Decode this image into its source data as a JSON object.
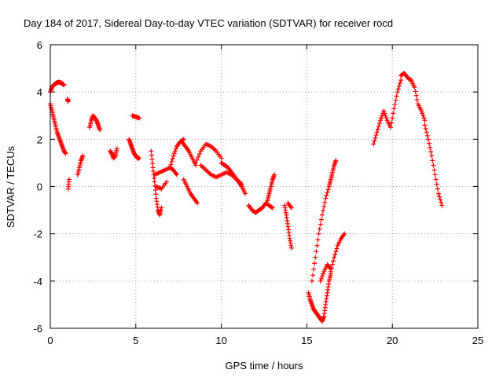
{
  "chart_data": {
    "type": "scatter",
    "title": "Day 184 of 2017, Sidereal Day-to-day VTEC variation (SDTVAR) for receiver rocd",
    "xlabel": "GPS time / hours",
    "ylabel": "SDTVAR / TECUs",
    "xlim": [
      0,
      25
    ],
    "ylim": [
      -6,
      6
    ],
    "xticks": [
      0,
      5,
      10,
      15,
      20,
      25
    ],
    "yticks": [
      -6,
      -4,
      -2,
      0,
      2,
      4,
      6
    ],
    "grid": true,
    "marker": "+",
    "color": "#ff0000",
    "segments": [
      {
        "x": [
          0.0,
          0.1,
          0.2,
          0.3,
          0.4,
          0.5,
          0.6,
          0.7,
          0.8
        ],
        "y": [
          4.0,
          4.2,
          4.3,
          4.35,
          4.4,
          4.42,
          4.4,
          4.35,
          4.3
        ]
      },
      {
        "x": [
          0.0,
          0.1,
          0.2,
          0.3,
          0.4,
          0.5,
          0.6,
          0.7,
          0.8,
          0.9
        ],
        "y": [
          3.5,
          3.2,
          2.9,
          2.6,
          2.3,
          2.1,
          1.9,
          1.7,
          1.5,
          1.4
        ]
      },
      {
        "x": [
          1.0,
          1.05
        ],
        "y": [
          3.7,
          3.6
        ]
      },
      {
        "x": [
          1.05,
          1.1
        ],
        "y": [
          -0.1,
          0.3
        ]
      },
      {
        "x": [
          1.6,
          1.7,
          1.8,
          1.9
        ],
        "y": [
          0.5,
          0.8,
          1.1,
          1.3
        ]
      },
      {
        "x": [
          2.3,
          2.4,
          2.5,
          2.6,
          2.7,
          2.8,
          2.9
        ],
        "y": [
          2.5,
          2.8,
          3.0,
          2.9,
          2.8,
          2.6,
          2.4
        ]
      },
      {
        "x": [
          3.5,
          3.6,
          3.7,
          3.8,
          3.9
        ],
        "y": [
          1.5,
          1.4,
          1.2,
          1.3,
          1.6
        ]
      },
      {
        "x": [
          4.6,
          4.7,
          4.8,
          4.9,
          5.0,
          5.1,
          5.2
        ],
        "y": [
          2.0,
          1.8,
          1.6,
          1.4,
          1.3,
          1.2,
          1.2
        ]
      },
      {
        "x": [
          4.8,
          5.0,
          5.2
        ],
        "y": [
          3.0,
          2.95,
          2.9
        ]
      },
      {
        "x": [
          5.9,
          6.0,
          6.1,
          6.2,
          6.3,
          6.4,
          6.5
        ],
        "y": [
          1.5,
          0.8,
          0.2,
          -0.5,
          -1.0,
          -1.2,
          -0.9
        ]
      },
      {
        "x": [
          6.1,
          6.4,
          6.7,
          7.0,
          7.2,
          7.4
        ],
        "y": [
          0.5,
          0.6,
          0.7,
          0.8,
          0.7,
          0.5
        ]
      },
      {
        "x": [
          6.2,
          6.5,
          6.8
        ],
        "y": [
          0.0,
          -0.1,
          0.2
        ]
      },
      {
        "x": [
          7.0,
          7.2,
          7.4,
          7.6,
          7.8
        ],
        "y": [
          0.8,
          1.3,
          1.7,
          1.9,
          2.0
        ]
      },
      {
        "x": [
          7.7,
          7.9,
          8.1,
          8.3,
          8.5
        ],
        "y": [
          1.9,
          1.7,
          1.5,
          1.2,
          0.9
        ]
      },
      {
        "x": [
          7.8,
          8.0,
          8.2,
          8.4,
          8.6
        ],
        "y": [
          0.3,
          0.0,
          -0.3,
          -0.5,
          -0.7
        ]
      },
      {
        "x": [
          8.5,
          8.8,
          9.1,
          9.4,
          9.7,
          10.0
        ],
        "y": [
          1.0,
          1.5,
          1.8,
          1.7,
          1.5,
          1.2
        ]
      },
      {
        "x": [
          8.8,
          9.1,
          9.4,
          9.7,
          10.0,
          10.3,
          10.6,
          10.9,
          11.2
        ],
        "y": [
          0.9,
          0.7,
          0.5,
          0.4,
          0.5,
          0.6,
          0.5,
          0.3,
          0.1
        ]
      },
      {
        "x": [
          10.0,
          10.2,
          10.4,
          10.6,
          10.8,
          11.0,
          11.2,
          11.4
        ],
        "y": [
          1.0,
          0.9,
          0.8,
          0.6,
          0.4,
          0.2,
          0.0,
          -0.3
        ]
      },
      {
        "x": [
          11.6,
          11.8,
          12.0,
          12.2,
          12.4,
          12.6,
          12.8,
          13.0
        ],
        "y": [
          -0.8,
          -1.0,
          -1.1,
          -1.0,
          -0.9,
          -0.7,
          -0.8,
          -0.9
        ]
      },
      {
        "x": [
          12.7,
          12.8,
          12.9,
          13.0,
          13.1
        ],
        "y": [
          -0.6,
          -0.3,
          0.0,
          0.3,
          0.5
        ]
      },
      {
        "x": [
          13.7,
          13.8,
          13.9,
          14.0,
          14.1
        ],
        "y": [
          -0.8,
          -1.2,
          -1.7,
          -2.2,
          -2.6
        ]
      },
      {
        "x": [
          13.9,
          14.1
        ],
        "y": [
          -0.7,
          -0.9
        ]
      },
      {
        "x": [
          15.1,
          15.2,
          15.3,
          15.4,
          15.5,
          15.6,
          15.7,
          15.8,
          15.9,
          16.0,
          16.1,
          16.2,
          16.3,
          16.4
        ],
        "y": [
          -4.5,
          -4.8,
          -5.0,
          -5.2,
          -5.3,
          -5.4,
          -5.5,
          -5.6,
          -5.7,
          -5.5,
          -5.0,
          -4.5,
          -4.0,
          -3.7
        ]
      },
      {
        "x": [
          15.3,
          15.5,
          15.7,
          15.9,
          16.1,
          16.3,
          16.4,
          16.5,
          16.6,
          16.7
        ],
        "y": [
          -4.0,
          -3.0,
          -2.0,
          -1.2,
          -0.5,
          0.0,
          0.3,
          0.6,
          0.9,
          1.1
        ]
      },
      {
        "x": [
          16.4,
          16.6,
          16.8,
          17.0,
          17.2
        ],
        "y": [
          -3.6,
          -3.0,
          -2.5,
          -2.2,
          -2.0
        ]
      },
      {
        "x": [
          15.8,
          16.0,
          16.2,
          16.4
        ],
        "y": [
          -4.0,
          -3.6,
          -3.3,
          -3.5
        ]
      },
      {
        "x": [
          18.9,
          19.1,
          19.3,
          19.5,
          19.7,
          19.9,
          20.1,
          20.3,
          20.5
        ],
        "y": [
          1.8,
          2.3,
          2.8,
          3.2,
          2.8,
          2.5,
          3.3,
          4.0,
          4.5
        ]
      },
      {
        "x": [
          20.5,
          20.7,
          20.9,
          21.1,
          21.3,
          21.5,
          21.7,
          21.9
        ],
        "y": [
          4.7,
          4.8,
          4.6,
          4.5,
          4.2,
          3.5,
          3.2,
          2.8
        ]
      },
      {
        "x": [
          21.9,
          22.1,
          22.3,
          22.5,
          22.7,
          22.9
        ],
        "y": [
          2.6,
          2.0,
          1.3,
          0.5,
          -0.3,
          -0.8
        ]
      }
    ]
  }
}
